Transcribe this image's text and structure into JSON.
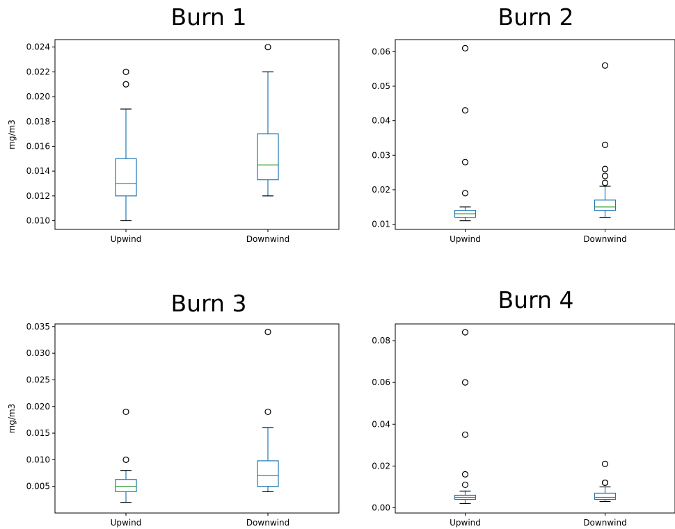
{
  "chart_data": [
    {
      "type": "boxplot",
      "title": "Burn 1",
      "ylabel": "mg/m3",
      "categories": [
        "Upwind",
        "Downwind"
      ],
      "ylim": [
        0.0093,
        0.0246
      ],
      "yticks": [
        0.01,
        0.012,
        0.014,
        0.016,
        0.018,
        0.02,
        0.022,
        0.024
      ],
      "ytick_labels": [
        "0.010",
        "0.012",
        "0.014",
        "0.016",
        "0.018",
        "0.020",
        "0.022",
        "0.024"
      ],
      "boxes": [
        {
          "name": "Upwind",
          "whislo": 0.01,
          "q1": 0.012,
          "med": 0.013,
          "q3": 0.015,
          "whishi": 0.019,
          "fliers": [
            0.021,
            0.022
          ]
        },
        {
          "name": "Downwind",
          "whislo": 0.012,
          "q1": 0.0133,
          "med": 0.0145,
          "q3": 0.017,
          "whishi": 0.022,
          "fliers": [
            0.024
          ]
        }
      ]
    },
    {
      "type": "boxplot",
      "title": "Burn 2",
      "ylabel": "",
      "categories": [
        "Upwind",
        "Downwind"
      ],
      "ylim": [
        0.0085,
        0.0635
      ],
      "yticks": [
        0.01,
        0.02,
        0.03,
        0.04,
        0.05,
        0.06
      ],
      "ytick_labels": [
        "0.01",
        "0.02",
        "0.03",
        "0.04",
        "0.05",
        "0.06"
      ],
      "boxes": [
        {
          "name": "Upwind",
          "whislo": 0.011,
          "q1": 0.012,
          "med": 0.013,
          "q3": 0.014,
          "whishi": 0.015,
          "fliers": [
            0.019,
            0.028,
            0.043,
            0.061
          ]
        },
        {
          "name": "Downwind",
          "whislo": 0.012,
          "q1": 0.014,
          "med": 0.015,
          "q3": 0.017,
          "whishi": 0.021,
          "fliers": [
            0.022,
            0.024,
            0.026,
            0.033,
            0.056
          ]
        }
      ]
    },
    {
      "type": "boxplot",
      "title": "Burn 3",
      "ylabel": "mg/m3",
      "categories": [
        "Upwind",
        "Downwind"
      ],
      "ylim": [
        0.0,
        0.0355
      ],
      "yticks": [
        0.005,
        0.01,
        0.015,
        0.02,
        0.025,
        0.03,
        0.035
      ],
      "ytick_labels": [
        "0.005",
        "0.010",
        "0.015",
        "0.020",
        "0.025",
        "0.030",
        "0.035"
      ],
      "boxes": [
        {
          "name": "Upwind",
          "whislo": 0.002,
          "q1": 0.004,
          "med": 0.005,
          "q3": 0.0063,
          "whishi": 0.008,
          "fliers": [
            0.01,
            0.019
          ]
        },
        {
          "name": "Downwind",
          "whislo": 0.004,
          "q1": 0.005,
          "med": 0.007,
          "q3": 0.0098,
          "whishi": 0.016,
          "fliers": [
            0.019,
            0.034
          ]
        }
      ]
    },
    {
      "type": "boxplot",
      "title": "Burn 4",
      "ylabel": "",
      "categories": [
        "Upwind",
        "Downwind"
      ],
      "ylim": [
        -0.0025,
        0.088
      ],
      "yticks": [
        0.0,
        0.02,
        0.04,
        0.06,
        0.08
      ],
      "ytick_labels": [
        "0.00",
        "0.02",
        "0.04",
        "0.06",
        "0.08"
      ],
      "boxes": [
        {
          "name": "Upwind",
          "whislo": 0.002,
          "q1": 0.004,
          "med": 0.005,
          "q3": 0.006,
          "whishi": 0.008,
          "fliers": [
            0.011,
            0.016,
            0.035,
            0.06,
            0.084
          ]
        },
        {
          "name": "Downwind",
          "whislo": 0.003,
          "q1": 0.004,
          "med": 0.005,
          "q3": 0.007,
          "whishi": 0.01,
          "fliers": [
            0.012,
            0.012,
            0.021
          ]
        }
      ]
    }
  ],
  "colors": {
    "box": "#1f77b4",
    "median": "#2ca02c",
    "whisker": "#000000",
    "flier": "#000000",
    "axes": "#000000"
  }
}
